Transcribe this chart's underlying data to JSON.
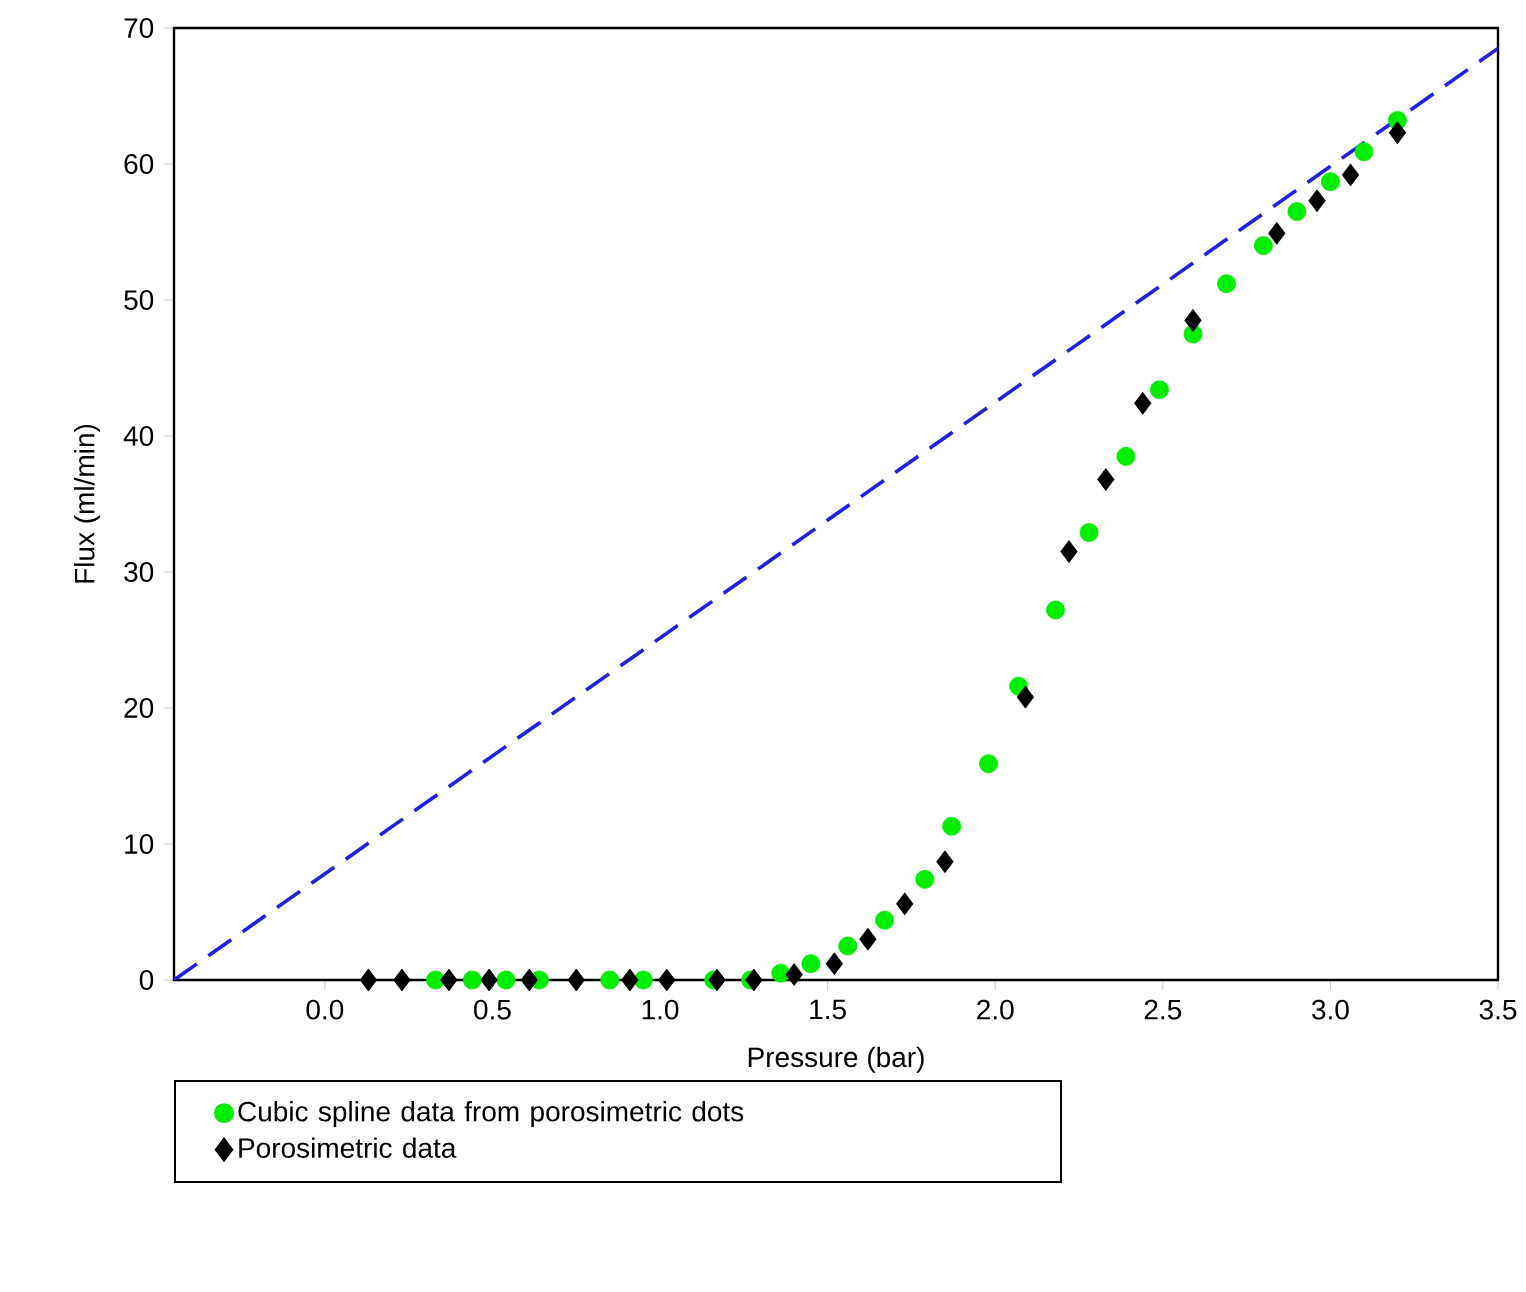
{
  "chart_data": {
    "type": "scatter",
    "xlabel": "Pressure (bar)",
    "ylabel": "Flux (ml/min)",
    "xlim": [
      -0.45,
      3.5
    ],
    "ylim": [
      0,
      70
    ],
    "xticks": [
      {
        "value": 0,
        "label": "0.0"
      },
      {
        "value": 0.5,
        "label": "0.5"
      },
      {
        "value": 1,
        "label": "1.0"
      },
      {
        "value": 1.5,
        "label": "1.5"
      },
      {
        "value": 2,
        "label": "2.0"
      },
      {
        "value": 2.5,
        "label": "2.5"
      },
      {
        "value": 3,
        "label": "3.0"
      },
      {
        "value": 3.5,
        "label": "3.5"
      }
    ],
    "yticks": [
      0,
      10,
      20,
      30,
      40,
      50,
      60,
      70
    ],
    "grid": false,
    "legend": "bottom left",
    "series": [
      {
        "type": "line",
        "color": "#1f1fe6",
        "line_style": "dashed",
        "marker": "none",
        "x": [
          -0.45,
          3.5
        ],
        "values": [
          0,
          68.5
        ]
      },
      {
        "name": "Cubic spline data from porosimetric dots",
        "color": "#00ee00",
        "marker": "circle",
        "x": [
          0.33,
          0.44,
          0.54,
          0.64,
          0.85,
          0.95,
          1.16,
          1.27,
          1.36,
          1.45,
          1.56,
          1.67,
          1.79,
          1.87,
          1.98,
          2.07,
          2.18,
          2.28,
          2.39,
          2.49,
          2.59,
          2.69,
          2.8,
          2.9,
          3.0,
          3.1,
          3.2
        ],
        "values": [
          0,
          0,
          0,
          0,
          0,
          0,
          0,
          0,
          0.5,
          1.2,
          2.5,
          4.4,
          7.4,
          11.3,
          15.9,
          21.6,
          27.2,
          32.9,
          38.5,
          43.4,
          47.5,
          51.2,
          54.0,
          56.5,
          58.7,
          60.9,
          63.2
        ]
      },
      {
        "name": "Porosimetric data",
        "color": "#000000",
        "marker": "diamond",
        "x": [
          0.13,
          0.23,
          0.37,
          0.49,
          0.61,
          0.75,
          0.91,
          1.02,
          1.17,
          1.28,
          1.4,
          1.52,
          1.62,
          1.73,
          1.85,
          2.09,
          2.22,
          2.33,
          2.44,
          2.59,
          2.84,
          2.96,
          3.06,
          3.2
        ],
        "values": [
          0,
          0,
          0,
          0,
          0,
          0,
          0,
          0,
          0,
          0,
          0.4,
          1.2,
          3.0,
          5.6,
          8.7,
          20.8,
          31.5,
          36.8,
          42.4,
          48.5,
          54.9,
          57.3,
          59.2,
          62.3
        ]
      }
    ]
  }
}
